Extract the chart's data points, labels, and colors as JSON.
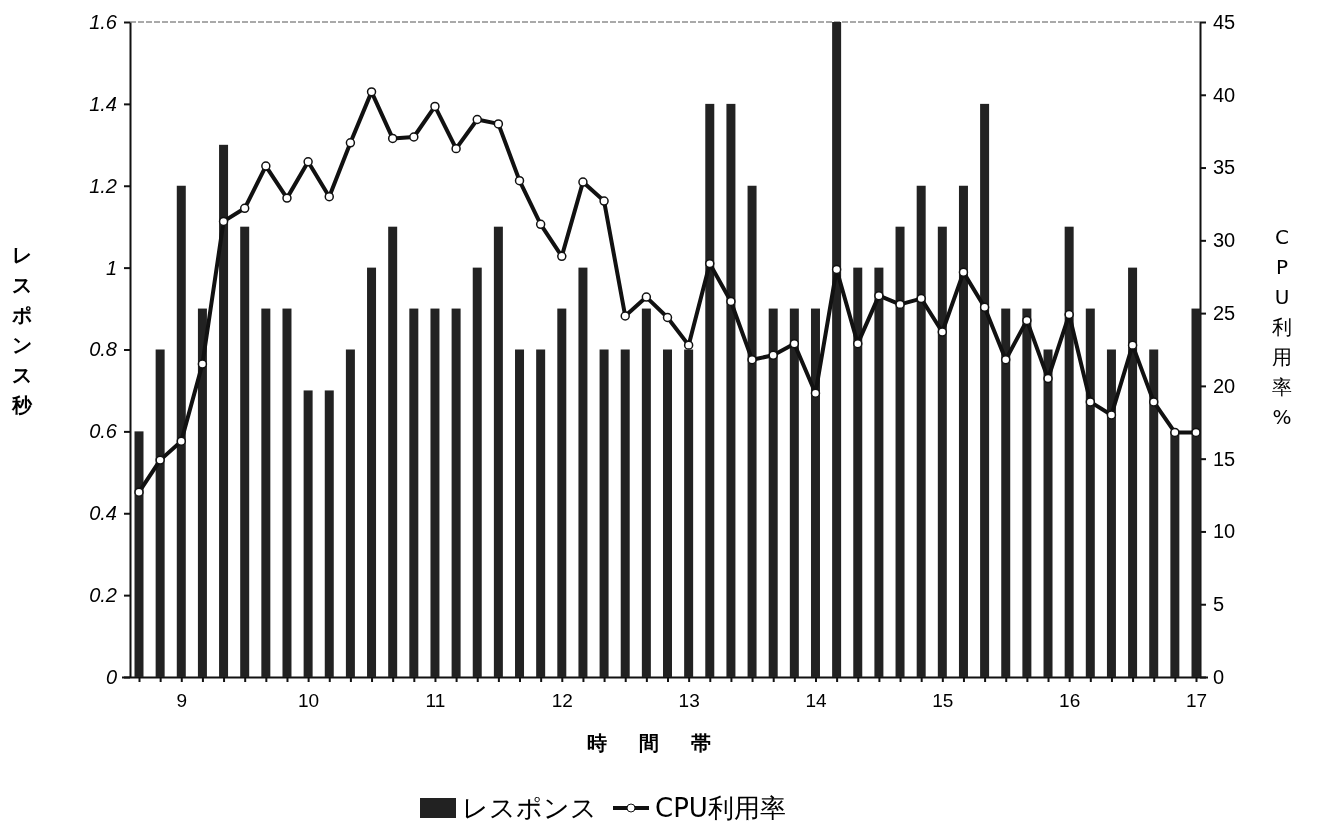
{
  "chart_data": {
    "type": "bar",
    "xlabel": "時間帯",
    "ylabel": "レスポンス秒",
    "y2label": "CPU利用率%",
    "categories": [
      null,
      null,
      "9",
      null,
      null,
      null,
      null,
      null,
      "10",
      null,
      null,
      null,
      null,
      null,
      "11",
      null,
      null,
      null,
      null,
      null,
      "12",
      null,
      null,
      null,
      null,
      null,
      "13",
      null,
      null,
      null,
      null,
      null,
      "14",
      null,
      null,
      null,
      null,
      null,
      "15",
      null,
      null,
      null,
      null,
      null,
      "16",
      null,
      null,
      null,
      null,
      null,
      "17"
    ],
    "series": [
      {
        "name": "レスポンス",
        "color": "#222222",
        "values": [
          0.6,
          0.8,
          1.2,
          0.9,
          1.3,
          1.1,
          0.9,
          0.9,
          0.7,
          0.7,
          0.8,
          1.0,
          1.1,
          0.9,
          0.9,
          0.9,
          1.0,
          1.1,
          0.8,
          0.8,
          0.9,
          1.0,
          0.8,
          0.8,
          0.9,
          0.8,
          0.8,
          1.4,
          1.4,
          1.2,
          0.9,
          0.9,
          0.9,
          1.6,
          1.0,
          1.0,
          1.1,
          1.2,
          1.1,
          1.2,
          1.4,
          0.9,
          0.9,
          0.8,
          1.1,
          0.9,
          0.8,
          1.0,
          0.8,
          0.6,
          0.9
        ]
      },
      {
        "name": "CPU利用率",
        "type": "line",
        "axis": "y2",
        "color": "#111111",
        "values": [
          12.7,
          14.9,
          16.2,
          21.5,
          31.3,
          32.2,
          35.1,
          32.9,
          35.4,
          33.0,
          36.7,
          40.2,
          37.0,
          37.1,
          39.2,
          36.3,
          38.3,
          38.0,
          34.1,
          31.1,
          28.9,
          34.0,
          32.7,
          24.8,
          26.1,
          24.7,
          22.8,
          28.4,
          25.8,
          21.8,
          22.1,
          22.9,
          19.5,
          28.0,
          22.9,
          26.2,
          25.6,
          26.0,
          23.7,
          27.8,
          25.4,
          21.8,
          24.5,
          20.5,
          24.9,
          18.9,
          18.0,
          22.8,
          18.9,
          16.8,
          16.8
        ]
      }
    ],
    "ylim": [
      0,
      1.6
    ],
    "yticks": [
      0,
      0.2,
      0.4,
      0.6,
      0.8,
      1,
      1.2,
      1.4,
      1.6
    ],
    "y2lim": [
      0,
      45
    ],
    "y2ticks": [
      0,
      5,
      10,
      15,
      20,
      25,
      30,
      35,
      40,
      45
    ],
    "marker": "circle",
    "line_style": "solid",
    "legend": "bottom"
  }
}
